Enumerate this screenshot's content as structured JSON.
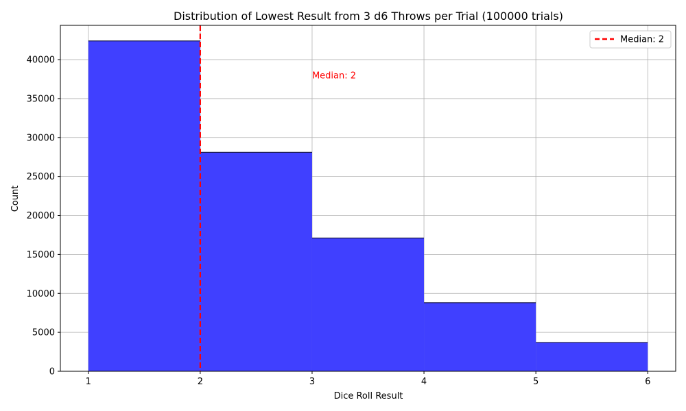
{
  "chart_data": {
    "type": "bar",
    "title": "Distribution of Lowest Result from 3 d6 Throws per Trial (100000 trials)",
    "xlabel": "Dice Roll Result",
    "ylabel": "Count",
    "bins": [
      {
        "start": 1,
        "end": 2,
        "value": 42400
      },
      {
        "start": 2,
        "end": 3,
        "value": 28100
      },
      {
        "start": 3,
        "end": 4,
        "value": 17100
      },
      {
        "start": 4,
        "end": 5,
        "value": 8800
      },
      {
        "start": 5,
        "end": 6,
        "value": 3700
      }
    ],
    "xlim": [
      0.75,
      6.25
    ],
    "ylim": [
      0,
      44400
    ],
    "xticks": [
      1,
      2,
      3,
      4,
      5,
      6
    ],
    "yticks": [
      0,
      5000,
      10000,
      15000,
      20000,
      25000,
      30000,
      35000,
      40000
    ],
    "grid": true,
    "bar_color": "#4040ff",
    "bar_edge_color": "#1a1a4a",
    "median": {
      "value": 2,
      "color": "#ff0000",
      "annotation": "Median: 2",
      "annotation_x": 3,
      "annotation_y": 38000
    },
    "legend": {
      "placement": "top-right",
      "entries": [
        "Median: 2"
      ]
    }
  }
}
